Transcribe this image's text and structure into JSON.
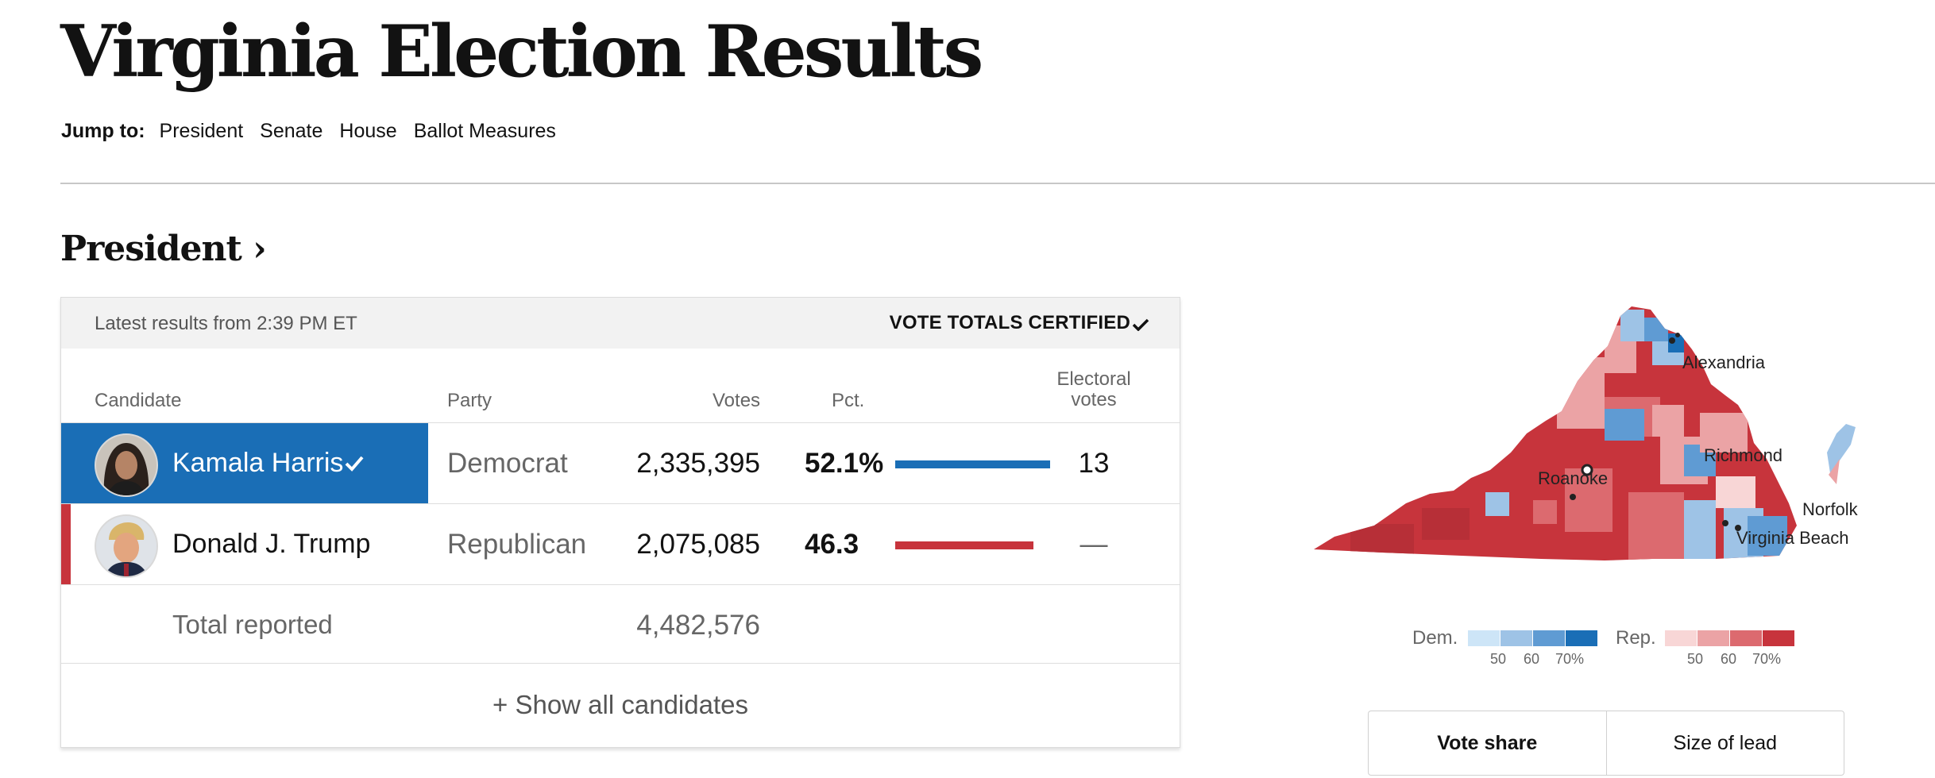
{
  "page": {
    "title": "Virginia Election Results"
  },
  "jump_nav": {
    "label": "Jump to:",
    "links": [
      "President",
      "Senate",
      "House",
      "Ballot Measures"
    ]
  },
  "section": {
    "heading": "President ›"
  },
  "results": {
    "updated": "Latest results from 2:39 PM ET",
    "certified": "VOTE TOTALS CERTIFIED",
    "columns": {
      "candidate": "Candidate",
      "party": "Party",
      "votes": "Votes",
      "pct": "Pct.",
      "electoral_line1": "Electoral",
      "electoral_line2": "votes"
    },
    "candidates": [
      {
        "name": "Kamala Harris",
        "party": "Democrat",
        "votes": "2,335,395",
        "pct": "52.1%",
        "pct_value": 52.1,
        "electoral": "13",
        "winner": true,
        "color": "#1a6eb6"
      },
      {
        "name": "Donald J. Trump",
        "party": "Republican",
        "votes": "2,075,085",
        "pct": "46.3",
        "pct_value": 46.3,
        "electoral": "—",
        "winner": false,
        "color": "#c7343c"
      }
    ],
    "total": {
      "label": "Total reported",
      "votes": "4,482,576"
    },
    "show_all": "+ Show all candidates"
  },
  "map": {
    "cities": [
      "Alexandria",
      "Richmond",
      "Roanoke",
      "Norfolk",
      "Virginia Beach"
    ],
    "legend": {
      "dem_label": "Dem.",
      "rep_label": "Rep.",
      "ticks": [
        "50",
        "60",
        "70%"
      ],
      "dem_colors": [
        "#cde5f7",
        "#9ec3e6",
        "#5f9bd3",
        "#1a6eb6"
      ],
      "rep_colors": [
        "#f8d6d6",
        "#eba3a5",
        "#dc6a6f",
        "#c7343c"
      ]
    }
  },
  "toggle": {
    "options": [
      "Vote share",
      "Size of lead"
    ],
    "selected": "Vote share"
  }
}
